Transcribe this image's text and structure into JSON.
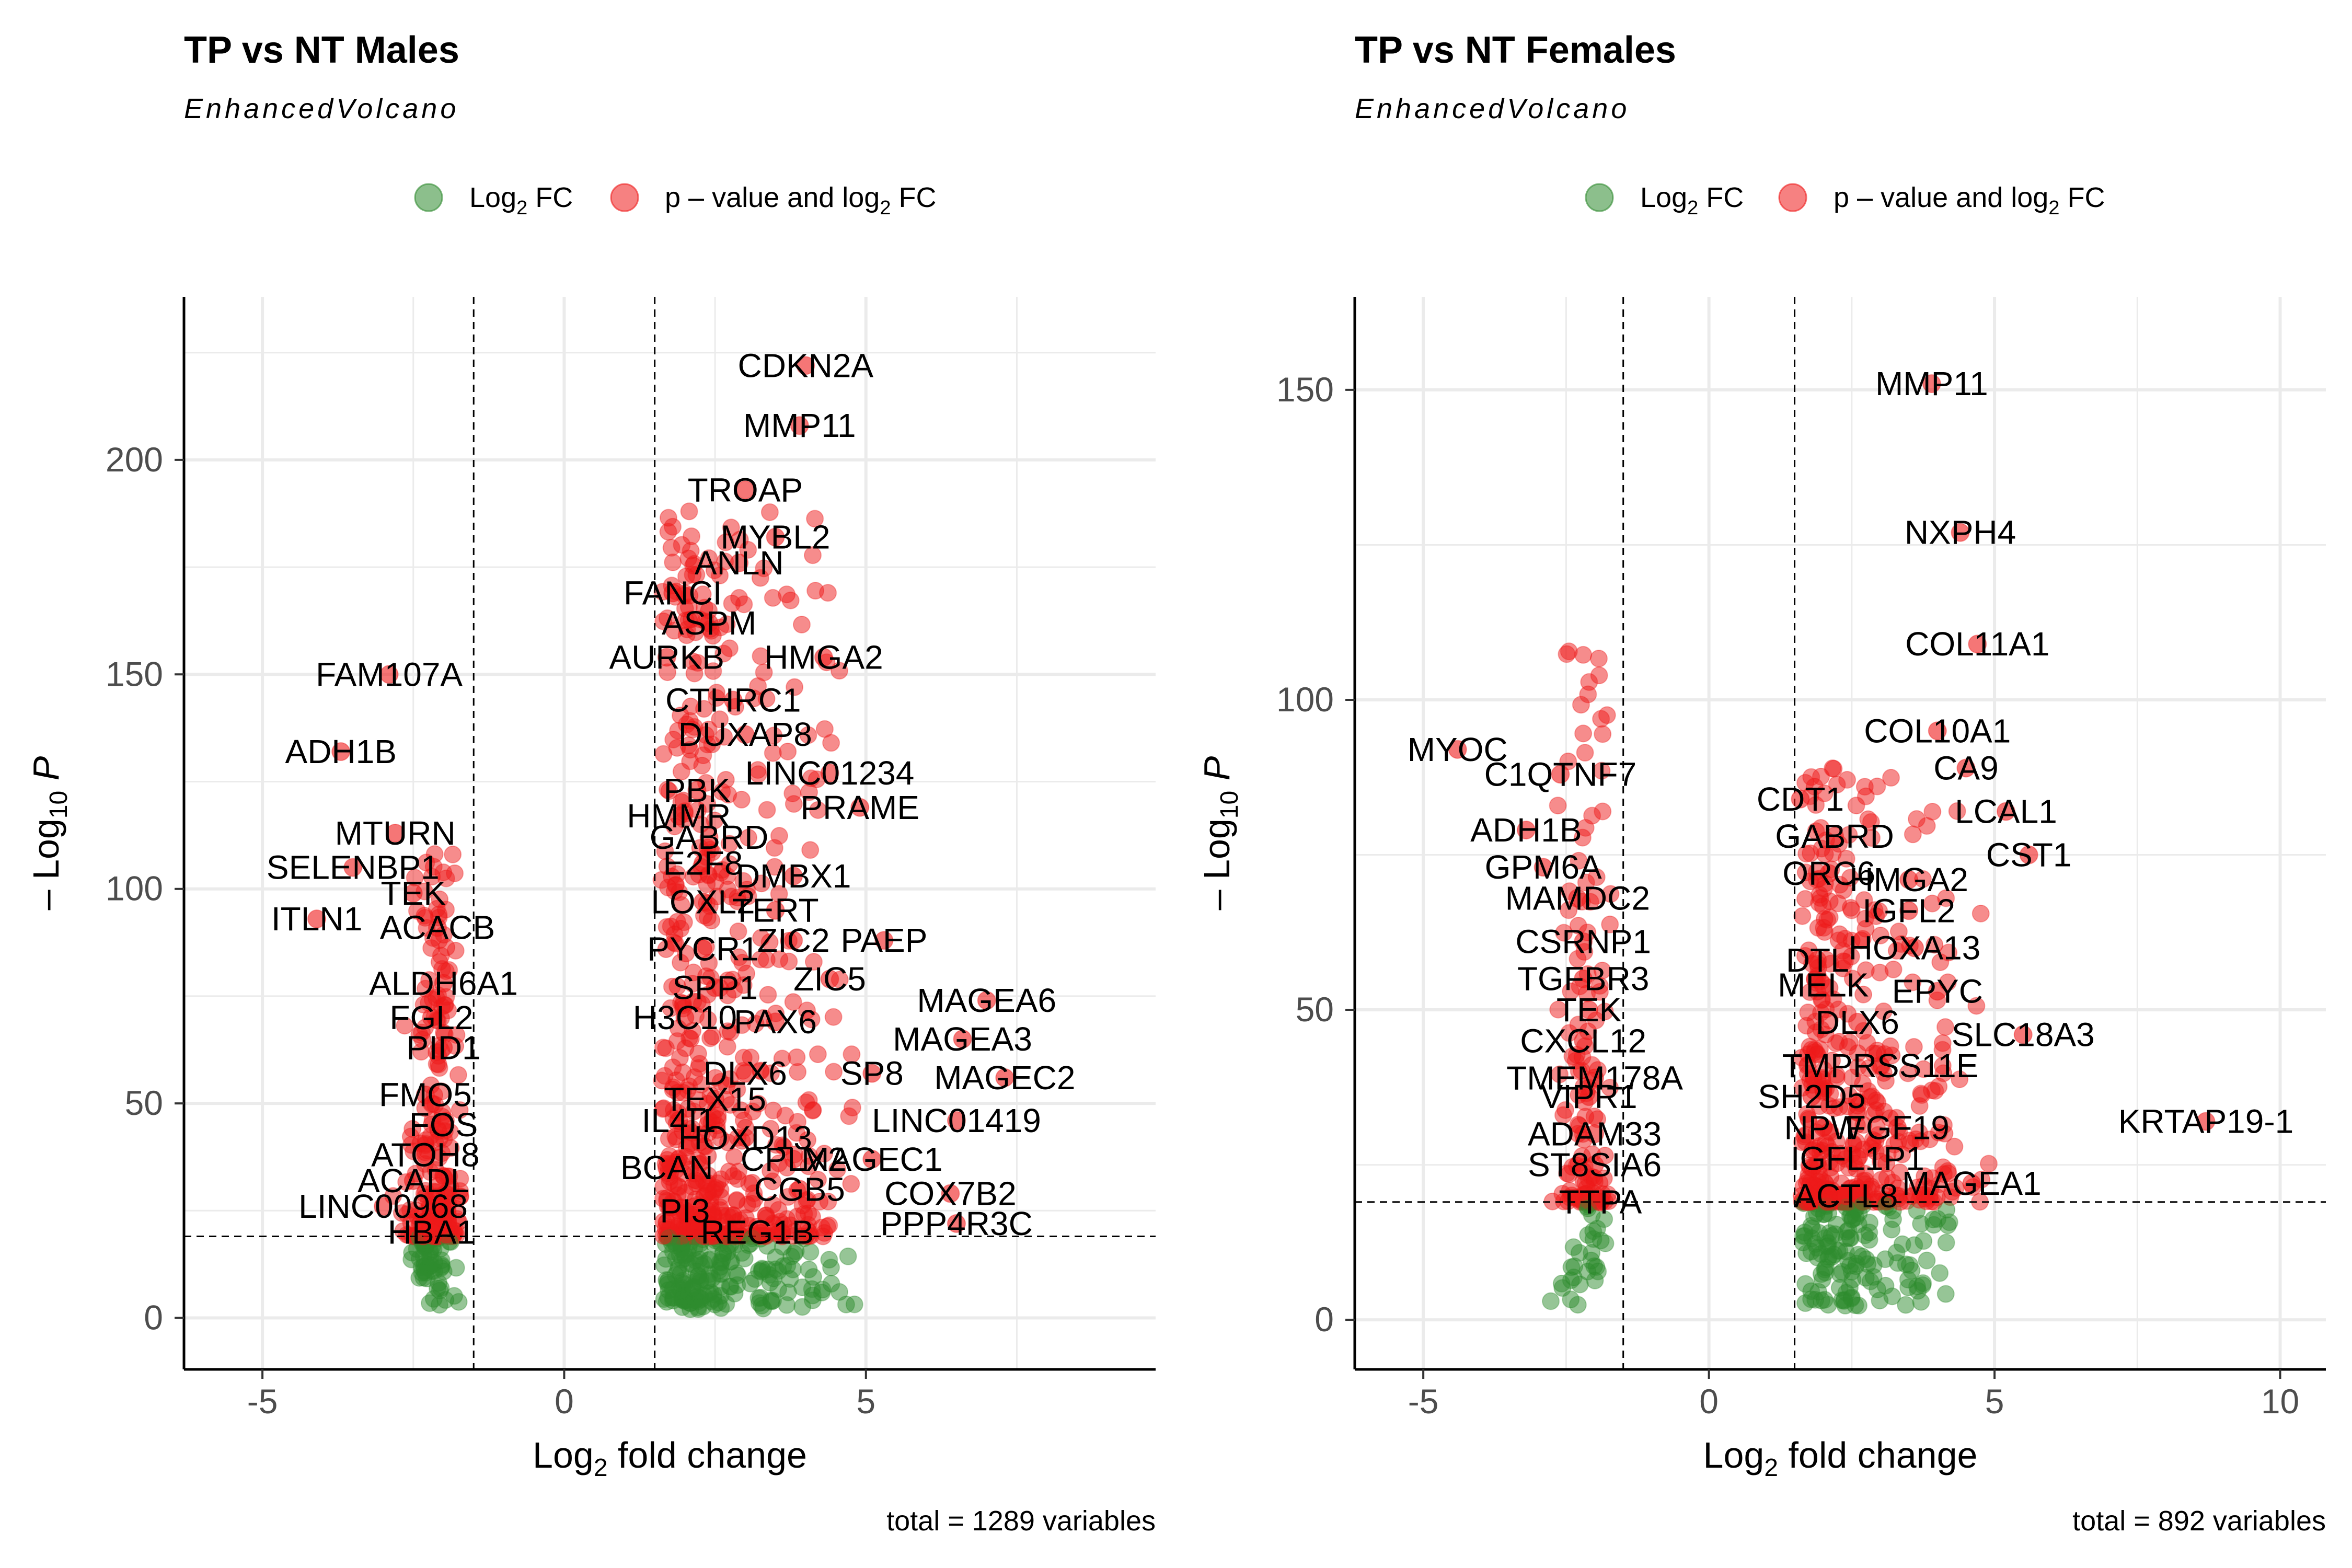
{
  "colors": {
    "fc_only": "#2e8b2e",
    "p_and_fc": "#ee1a1a",
    "grid": "#ebebeb",
    "axis": "#000000"
  },
  "legend": {
    "fc_only_label": "Log2 FC",
    "p_and_fc_label": "p – value and log2 FC"
  },
  "chart_data": [
    {
      "type": "scatter",
      "title": "TP vs NT Males",
      "subtitle": "EnhancedVolcano",
      "xlabel": "Log2 fold change",
      "ylabel": "–Log10 P",
      "caption": "total = 1289 variables",
      "xlim": [
        -6.3,
        9.8
      ],
      "ylim": [
        -12,
        238
      ],
      "xticks": [
        -5,
        0,
        5
      ],
      "yticks": [
        0,
        50,
        100,
        150,
        200
      ],
      "fc_cutoff": 1.5,
      "p_cutoff_log10": 19,
      "grid": true,
      "legend_position": "top",
      "labels": [
        {
          "gene": "CDKN2A",
          "x": 4.0,
          "y": 222
        },
        {
          "gene": "MMP11",
          "x": 3.9,
          "y": 208
        },
        {
          "gene": "TROAP",
          "x": 3.0,
          "y": 193
        },
        {
          "gene": "MYBL2",
          "x": 3.5,
          "y": 182
        },
        {
          "gene": "ANLN",
          "x": 2.9,
          "y": 176
        },
        {
          "gene": "FANCI",
          "x": 1.8,
          "y": 169
        },
        {
          "gene": "ASPM",
          "x": 2.4,
          "y": 162
        },
        {
          "gene": "AURKB",
          "x": 1.7,
          "y": 154
        },
        {
          "gene": "HMGA2",
          "x": 4.3,
          "y": 154
        },
        {
          "gene": "FAM107A",
          "x": -2.9,
          "y": 150
        },
        {
          "gene": "CTHRC1",
          "x": 2.8,
          "y": 144
        },
        {
          "gene": "DUXAP8",
          "x": 3.0,
          "y": 136
        },
        {
          "gene": "ADH1B",
          "x": -3.7,
          "y": 132
        },
        {
          "gene": "LINC01234",
          "x": 4.4,
          "y": 127
        },
        {
          "gene": "PBK",
          "x": 2.2,
          "y": 123
        },
        {
          "gene": "PRAME",
          "x": 4.9,
          "y": 119
        },
        {
          "gene": "HMMR",
          "x": 1.9,
          "y": 117
        },
        {
          "gene": "GABRD",
          "x": 2.4,
          "y": 112
        },
        {
          "gene": "MTURN",
          "x": -2.8,
          "y": 113
        },
        {
          "gene": "SELENBP1",
          "x": -3.5,
          "y": 105
        },
        {
          "gene": "E2F8",
          "x": 2.3,
          "y": 106
        },
        {
          "gene": "DMBX1",
          "x": 3.8,
          "y": 103
        },
        {
          "gene": "TEK",
          "x": -2.5,
          "y": 99
        },
        {
          "gene": "LOXL2",
          "x": 2.3,
          "y": 97
        },
        {
          "gene": "TERT",
          "x": 3.5,
          "y": 95
        },
        {
          "gene": "ITLN1",
          "x": -4.1,
          "y": 93
        },
        {
          "gene": "ACACB",
          "x": -2.1,
          "y": 91
        },
        {
          "gene": "ZIC2",
          "x": 3.8,
          "y": 88
        },
        {
          "gene": "PAEP",
          "x": 5.3,
          "y": 88
        },
        {
          "gene": "PYCR1",
          "x": 2.3,
          "y": 86
        },
        {
          "gene": "ZIC5",
          "x": 4.4,
          "y": 79
        },
        {
          "gene": "ALDH6A1",
          "x": -2.0,
          "y": 78
        },
        {
          "gene": "MAGEA6",
          "x": 7.0,
          "y": 74
        },
        {
          "gene": "SPP1",
          "x": 2.5,
          "y": 77
        },
        {
          "gene": "FGL2",
          "x": -2.2,
          "y": 70
        },
        {
          "gene": "H3C10",
          "x": 2.0,
          "y": 70
        },
        {
          "gene": "PAX6",
          "x": 3.5,
          "y": 69
        },
        {
          "gene": "MAGEA3",
          "x": 6.6,
          "y": 65
        },
        {
          "gene": "PID1",
          "x": -2.0,
          "y": 63
        },
        {
          "gene": "DLX6",
          "x": 3.0,
          "y": 57
        },
        {
          "gene": "SP8",
          "x": 5.1,
          "y": 57
        },
        {
          "gene": "MAGEC2",
          "x": 7.3,
          "y": 56
        },
        {
          "gene": "FMO5",
          "x": -2.3,
          "y": 52
        },
        {
          "gene": "TEX15",
          "x": 2.5,
          "y": 51
        },
        {
          "gene": "IL4I1",
          "x": 1.9,
          "y": 46
        },
        {
          "gene": "LINC01419",
          "x": 6.5,
          "y": 46
        },
        {
          "gene": "FOS",
          "x": -2.0,
          "y": 45
        },
        {
          "gene": "HOXD13",
          "x": 3.0,
          "y": 42
        },
        {
          "gene": "ATOH8",
          "x": -2.3,
          "y": 38
        },
        {
          "gene": "MAGEC1",
          "x": 5.1,
          "y": 37
        },
        {
          "gene": "CPLX2",
          "x": 3.8,
          "y": 37
        },
        {
          "gene": "BCAN",
          "x": 1.7,
          "y": 35
        },
        {
          "gene": "ACADL",
          "x": -2.5,
          "y": 32
        },
        {
          "gene": "CGB5",
          "x": 3.9,
          "y": 30
        },
        {
          "gene": "COX7B2",
          "x": 6.4,
          "y": 29
        },
        {
          "gene": "LINC00968",
          "x": -3.0,
          "y": 26
        },
        {
          "gene": "PI3",
          "x": 2.0,
          "y": 25
        },
        {
          "gene": "PPP4R3C",
          "x": 6.5,
          "y": 22
        },
        {
          "gene": "HBA1",
          "x": -2.2,
          "y": 20
        },
        {
          "gene": "REG1B",
          "x": 3.2,
          "y": 20
        }
      ]
    },
    {
      "type": "scatter",
      "title": "TP vs NT Females",
      "subtitle": "EnhancedVolcano",
      "xlabel": "Log2 fold change",
      "ylabel": "–Log10 P",
      "caption": "total = 892 variables",
      "xlim": [
        -6.2,
        10.8
      ],
      "ylim": [
        -8,
        165
      ],
      "xticks": [
        -5,
        0,
        5,
        10
      ],
      "yticks": [
        0,
        50,
        100,
        150
      ],
      "fc_cutoff": 1.5,
      "p_cutoff_log10": 19,
      "grid": true,
      "legend_position": "top",
      "labels": [
        {
          "gene": "MMP11",
          "x": 3.9,
          "y": 151
        },
        {
          "gene": "NXPH4",
          "x": 4.4,
          "y": 127
        },
        {
          "gene": "COL11A1",
          "x": 4.7,
          "y": 109
        },
        {
          "gene": "COL10A1",
          "x": 4.0,
          "y": 95
        },
        {
          "gene": "MYOC",
          "x": -4.4,
          "y": 92
        },
        {
          "gene": "CA9",
          "x": 4.5,
          "y": 89
        },
        {
          "gene": "C1QTNF7",
          "x": -2.6,
          "y": 88
        },
        {
          "gene": "CDT1",
          "x": 1.6,
          "y": 84
        },
        {
          "gene": "LCAL1",
          "x": 5.2,
          "y": 82
        },
        {
          "gene": "ADH1B",
          "x": -3.2,
          "y": 79
        },
        {
          "gene": "GABRD",
          "x": 2.2,
          "y": 78
        },
        {
          "gene": "CST1",
          "x": 5.6,
          "y": 75
        },
        {
          "gene": "GPM6A",
          "x": -2.9,
          "y": 73
        },
        {
          "gene": "ORC6",
          "x": 2.1,
          "y": 72
        },
        {
          "gene": "HMGA2",
          "x": 3.5,
          "y": 71
        },
        {
          "gene": "MAMDC2",
          "x": -2.3,
          "y": 68
        },
        {
          "gene": "IGFL2",
          "x": 3.5,
          "y": 66
        },
        {
          "gene": "CSRNP1",
          "x": -2.2,
          "y": 61
        },
        {
          "gene": "HOXA13",
          "x": 3.6,
          "y": 60
        },
        {
          "gene": "DTL",
          "x": 1.9,
          "y": 58
        },
        {
          "gene": "TGFBR3",
          "x": -2.2,
          "y": 55
        },
        {
          "gene": "MELK",
          "x": 2.0,
          "y": 54
        },
        {
          "gene": "EPYC",
          "x": 4.0,
          "y": 53
        },
        {
          "gene": "TEK",
          "x": -2.1,
          "y": 50
        },
        {
          "gene": "DLX6",
          "x": 2.6,
          "y": 48
        },
        {
          "gene": "SLC18A3",
          "x": 5.5,
          "y": 46
        },
        {
          "gene": "CXCL12",
          "x": -2.2,
          "y": 45
        },
        {
          "gene": "TMPRSS11E",
          "x": 3.0,
          "y": 41
        },
        {
          "gene": "TMEM178A",
          "x": -2.0,
          "y": 39
        },
        {
          "gene": "VIPR1",
          "x": -2.1,
          "y": 36
        },
        {
          "gene": "SH2D5",
          "x": 1.8,
          "y": 36
        },
        {
          "gene": "NPW",
          "x": 2.0,
          "y": 31
        },
        {
          "gene": "FGF19",
          "x": 3.3,
          "y": 31
        },
        {
          "gene": "KRTAP19-1",
          "x": 8.7,
          "y": 32
        },
        {
          "gene": "ADAM33",
          "x": -2.0,
          "y": 30
        },
        {
          "gene": "IGFL1P1",
          "x": 2.6,
          "y": 26
        },
        {
          "gene": "ST8SIA6",
          "x": -2.0,
          "y": 25
        },
        {
          "gene": "MAGEA1",
          "x": 4.6,
          "y": 22
        },
        {
          "gene": "ACTL8",
          "x": 2.4,
          "y": 20
        },
        {
          "gene": "TTPA",
          "x": -1.9,
          "y": 19
        }
      ]
    }
  ]
}
